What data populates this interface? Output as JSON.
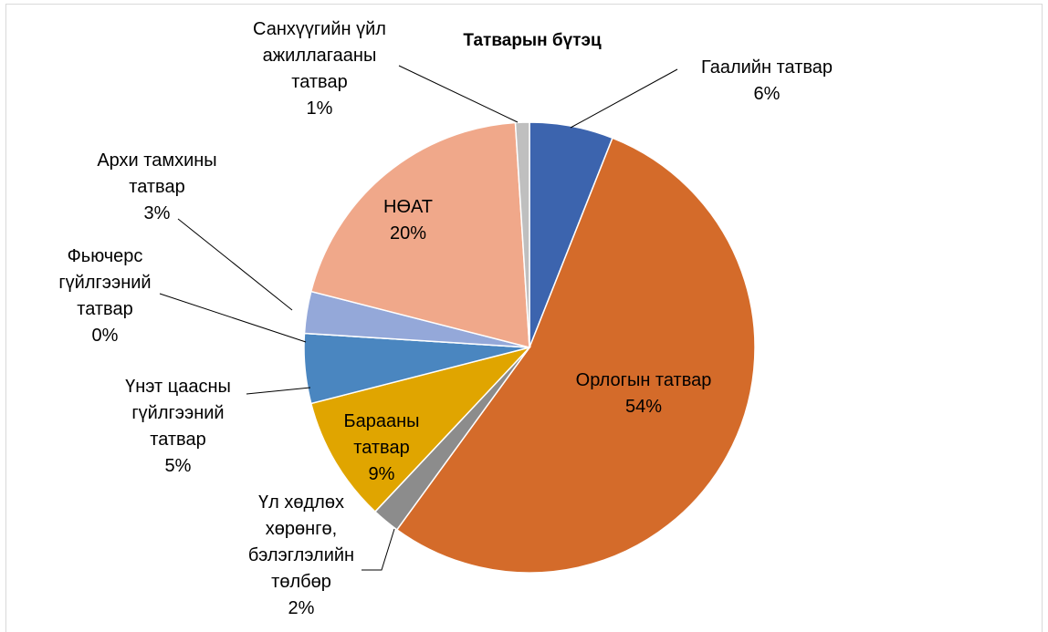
{
  "chart_data": {
    "type": "pie",
    "title": "Татварын бүтэц",
    "categories": [
      "Гаалийн татвар",
      "Орлогын татвар",
      "Үл хөдлөх\nхөрөнгө,\nбэлэглэлийн\nтөлбөр",
      "Барааны\nтатвар",
      "Үнэт цаасны\nгүйлгээний\nтатвар",
      "Фьючерс\nгүйлгээний\nтатвар",
      "Архи тамхины\nтатвар",
      "НӨАТ",
      "Санхүүгийн үйл\nажиллагааны\nтатвар"
    ],
    "values": [
      6,
      54,
      2,
      9,
      5,
      0,
      3,
      20,
      1
    ],
    "value_labels": [
      "6%",
      "54%",
      "2%",
      "9%",
      "5%",
      "0%",
      "3%",
      "20%",
      "1%"
    ],
    "colors": [
      "#3c64ae",
      "#d46b2a",
      "#8c8c8c",
      "#e0a500",
      "#4a86c0",
      "#6aa84f",
      "#94a8d9",
      "#f0a88a",
      "#bfbfbf"
    ]
  }
}
